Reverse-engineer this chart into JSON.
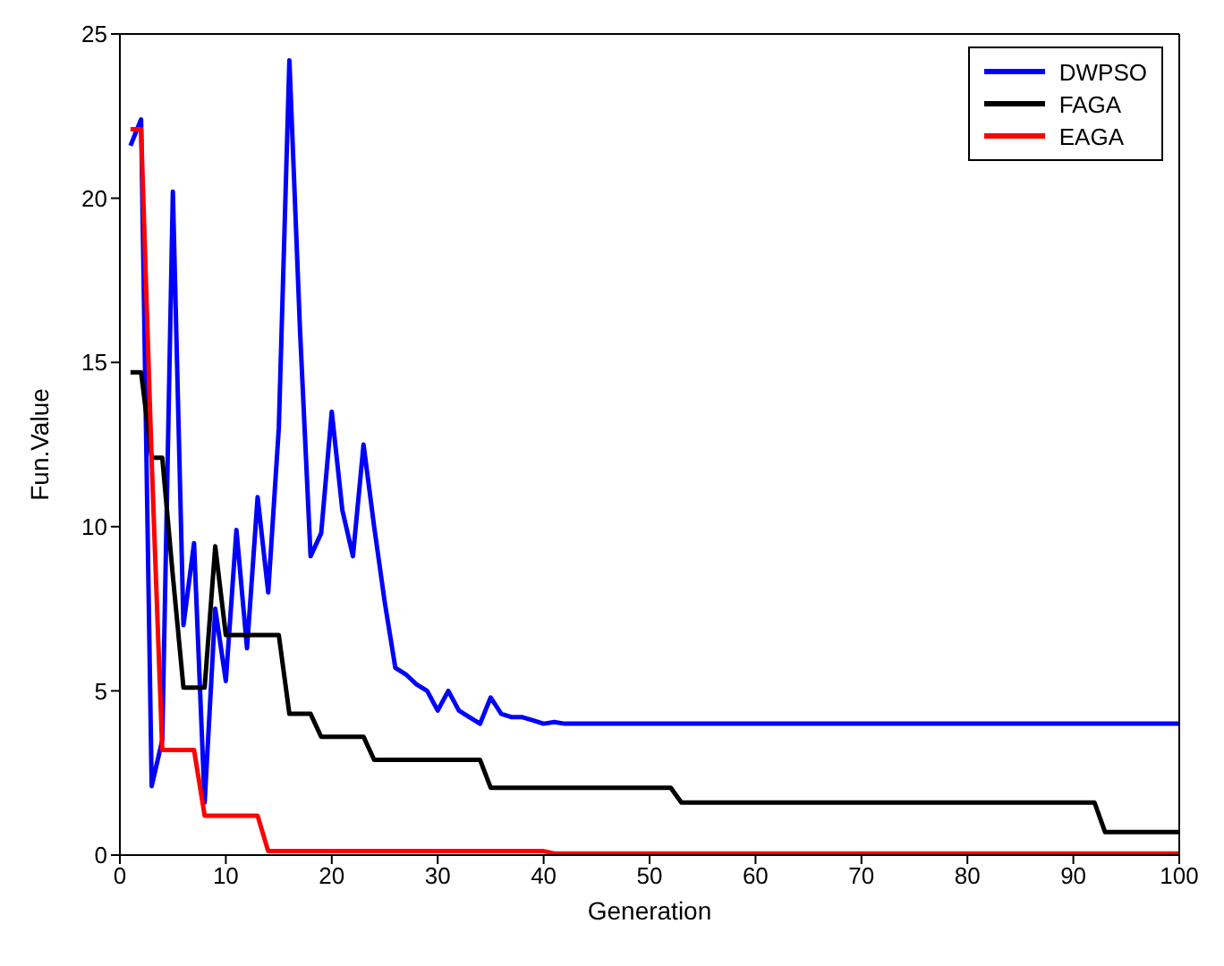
{
  "chart_data": {
    "type": "line",
    "xlabel": "Generation",
    "ylabel": "Fun.Value",
    "x": [
      1,
      2,
      3,
      4,
      5,
      6,
      7,
      8,
      9,
      10,
      11,
      12,
      13,
      14,
      15,
      16,
      17,
      18,
      19,
      20,
      21,
      22,
      23,
      24,
      25,
      26,
      27,
      28,
      29,
      30,
      31,
      32,
      33,
      34,
      35,
      36,
      37,
      38,
      39,
      40,
      41,
      42,
      43,
      44,
      45,
      46,
      47,
      48,
      49,
      50,
      51,
      52,
      53,
      54,
      55,
      56,
      57,
      58,
      59,
      60,
      61,
      62,
      63,
      64,
      65,
      66,
      67,
      68,
      69,
      70,
      71,
      72,
      73,
      74,
      75,
      76,
      77,
      78,
      79,
      80,
      81,
      82,
      83,
      84,
      85,
      86,
      87,
      88,
      89,
      90,
      91,
      92,
      93,
      94,
      95,
      96,
      97,
      98,
      99,
      100
    ],
    "series": [
      {
        "name": "DWPSO",
        "color": "#0000ff",
        "values": [
          21.6,
          22.4,
          2.1,
          3.5,
          20.2,
          7,
          9.5,
          1.6,
          7.5,
          5.3,
          9.9,
          6.3,
          10.9,
          8,
          13,
          24.2,
          16,
          9.1,
          9.8,
          13.5,
          10.5,
          9.1,
          12.5,
          10,
          7.7,
          5.7,
          5.5,
          5.2,
          5,
          4.4,
          5,
          4.4,
          4.2,
          4,
          4.8,
          4.3,
          4.2,
          4.2,
          4.1,
          4,
          4.05,
          4,
          4,
          4,
          4,
          4,
          4,
          4,
          4,
          4,
          4,
          4,
          4,
          4,
          4,
          4,
          4,
          4,
          4,
          4,
          4,
          4,
          4,
          4,
          4,
          4,
          4,
          4,
          4,
          4,
          4,
          4,
          4,
          4,
          4,
          4,
          4,
          4,
          4,
          4,
          4,
          4,
          4,
          4,
          4,
          4,
          4,
          4,
          4,
          4,
          4,
          4,
          4,
          4,
          4,
          4,
          4,
          4,
          4,
          4
        ]
      },
      {
        "name": "FAGA",
        "color": "#000000",
        "values": [
          14.7,
          14.7,
          12.1,
          12.1,
          8.5,
          5.1,
          5.1,
          5.1,
          9.4,
          6.7,
          6.7,
          6.7,
          6.7,
          6.7,
          6.7,
          4.3,
          4.3,
          4.3,
          3.6,
          3.6,
          3.6,
          3.6,
          3.6,
          2.9,
          2.9,
          2.9,
          2.9,
          2.9,
          2.9,
          2.9,
          2.9,
          2.9,
          2.9,
          2.9,
          2.05,
          2.05,
          2.05,
          2.05,
          2.05,
          2.05,
          2.05,
          2.05,
          2.05,
          2.05,
          2.05,
          2.05,
          2.05,
          2.05,
          2.05,
          2.05,
          2.05,
          2.05,
          1.6,
          1.6,
          1.6,
          1.6,
          1.6,
          1.6,
          1.6,
          1.6,
          1.6,
          1.6,
          1.6,
          1.6,
          1.6,
          1.6,
          1.6,
          1.6,
          1.6,
          1.6,
          1.6,
          1.6,
          1.6,
          1.6,
          1.6,
          1.6,
          1.6,
          1.6,
          1.6,
          1.6,
          1.6,
          1.6,
          1.6,
          1.6,
          1.6,
          1.6,
          1.6,
          1.6,
          1.6,
          1.6,
          1.6,
          1.6,
          0.7,
          0.7,
          0.7,
          0.7,
          0.7,
          0.7,
          0.7,
          0.7
        ]
      },
      {
        "name": "EAGA",
        "color": "#ff0000",
        "values": [
          22.1,
          22.1,
          12,
          3.2,
          3.2,
          3.2,
          3.2,
          1.2,
          1.2,
          1.2,
          1.2,
          1.2,
          1.2,
          0.12,
          0.12,
          0.12,
          0.12,
          0.12,
          0.12,
          0.12,
          0.12,
          0.12,
          0.12,
          0.12,
          0.12,
          0.12,
          0.12,
          0.12,
          0.12,
          0.12,
          0.12,
          0.12,
          0.12,
          0.12,
          0.12,
          0.12,
          0.12,
          0.12,
          0.12,
          0.12,
          0.05,
          0.05,
          0.05,
          0.05,
          0.05,
          0.05,
          0.05,
          0.05,
          0.05,
          0.05,
          0.05,
          0.05,
          0.05,
          0.05,
          0.05,
          0.05,
          0.05,
          0.05,
          0.05,
          0.05,
          0.05,
          0.05,
          0.05,
          0.05,
          0.05,
          0.05,
          0.05,
          0.05,
          0.05,
          0.05,
          0.05,
          0.05,
          0.05,
          0.05,
          0.05,
          0.05,
          0.05,
          0.05,
          0.05,
          0.05,
          0.05,
          0.05,
          0.05,
          0.05,
          0.05,
          0.05,
          0.05,
          0.05,
          0.05,
          0.05,
          0.05,
          0.05,
          0.05,
          0.05,
          0.05,
          0.05,
          0.05,
          0.05,
          0.05,
          0.05
        ]
      }
    ],
    "xlim": [
      0,
      100
    ],
    "xticks": [
      0,
      10,
      20,
      30,
      40,
      50,
      60,
      70,
      80,
      90,
      100
    ],
    "ylim": [
      0,
      25
    ],
    "yticks": [
      0,
      5,
      10,
      15,
      20,
      25
    ],
    "grid": false,
    "legend": "top right",
    "marker": "none",
    "line_style": "solid"
  }
}
